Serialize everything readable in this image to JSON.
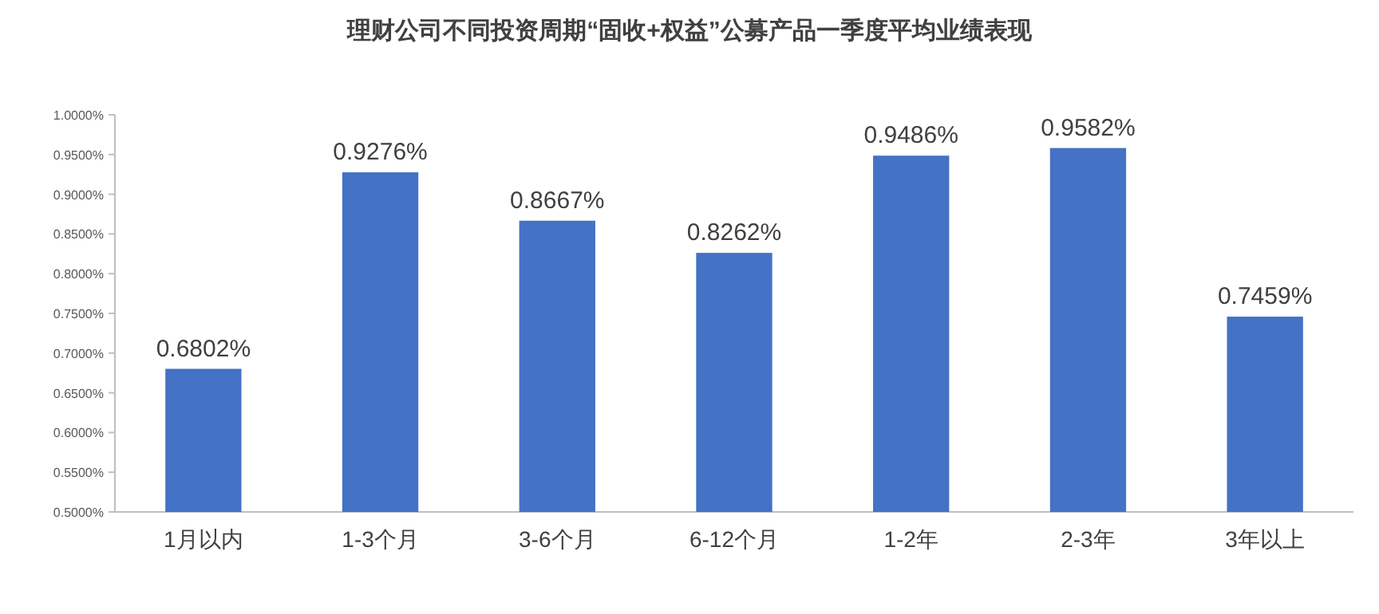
{
  "chart_data": {
    "type": "bar",
    "title": "理财公司不同投资周期“固收+权益”公募产品一季度平均业绩表现",
    "categories": [
      "1月以内",
      "1-3个月",
      "3-6个月",
      "6-12个月",
      "1-2年",
      "2-3年",
      "3年以上"
    ],
    "values": [
      0.6802,
      0.9276,
      0.8667,
      0.8262,
      0.9486,
      0.9582,
      0.7459
    ],
    "value_labels": [
      "0.6802%",
      "0.9276%",
      "0.8667%",
      "0.8262%",
      "0.9486%",
      "0.9582%",
      "0.7459%"
    ],
    "color": "#4472c4",
    "ylim": [
      0.5,
      1.0
    ],
    "yticks": [
      {
        "value": 0.5,
        "label": "0.5000%"
      },
      {
        "value": 0.55,
        "label": "0.5500%"
      },
      {
        "value": 0.6,
        "label": "0.6000%"
      },
      {
        "value": 0.65,
        "label": "0.6500%"
      },
      {
        "value": 0.7,
        "label": "0.7000%"
      },
      {
        "value": 0.75,
        "label": "0.7500%"
      },
      {
        "value": 0.8,
        "label": "0.8000%"
      },
      {
        "value": 0.85,
        "label": "0.8500%"
      },
      {
        "value": 0.9,
        "label": "0.9000%"
      },
      {
        "value": 0.95,
        "label": "0.9500%"
      },
      {
        "value": 1.0,
        "label": "1.0000%"
      }
    ]
  }
}
